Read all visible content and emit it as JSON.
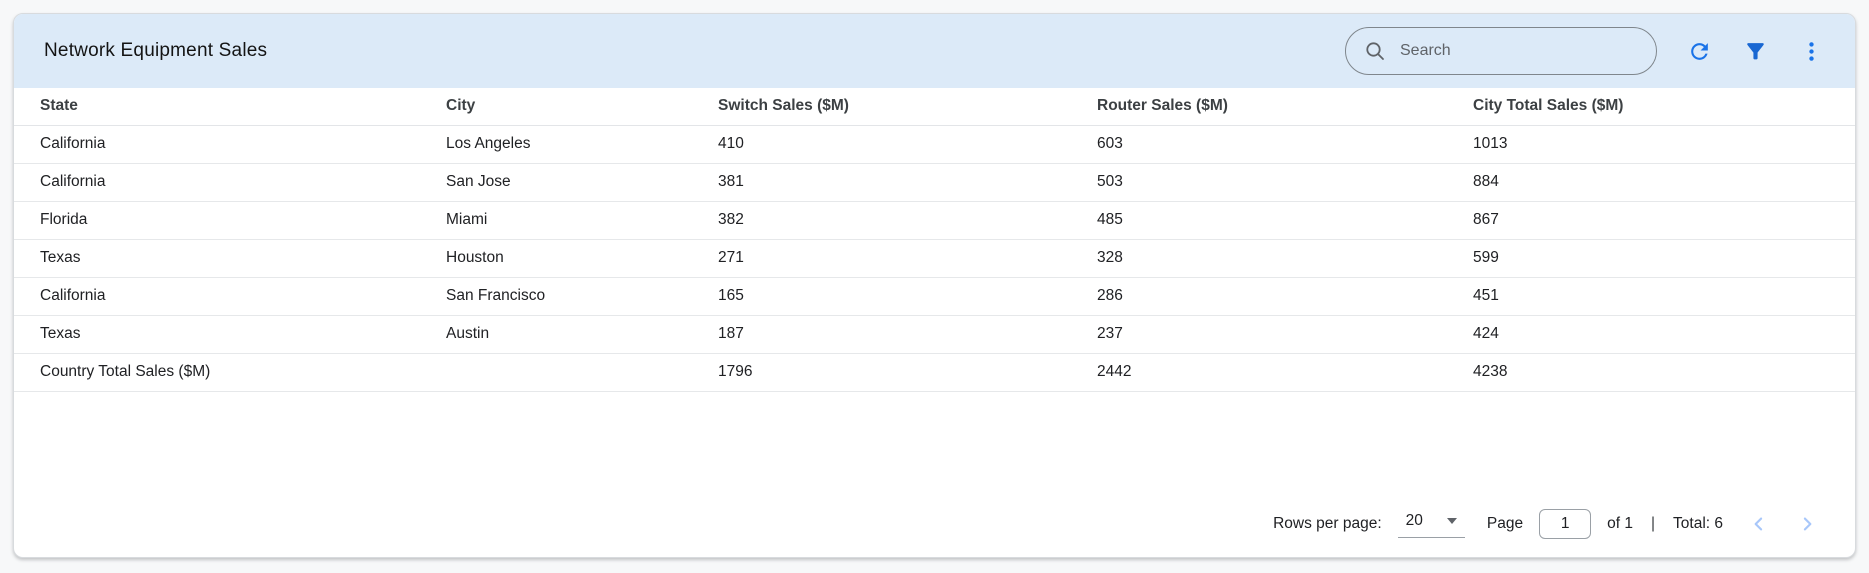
{
  "header": {
    "title": "Network Equipment Sales",
    "search_placeholder": "Search"
  },
  "icons": {
    "search": "magnifier",
    "refresh": "circular-arrow",
    "filter": "funnel",
    "menu": "kebab-vertical-dots",
    "prev": "chevron-left",
    "next": "chevron-right"
  },
  "table": {
    "columns": [
      "State",
      "City",
      "Switch Sales ($M)",
      "Router Sales ($M)",
      "City Total Sales ($M)"
    ],
    "rows": [
      [
        "California",
        "Los Angeles",
        "410",
        "603",
        "1013"
      ],
      [
        "California",
        "San Jose",
        "381",
        "503",
        "884"
      ],
      [
        "Florida",
        "Miami",
        "382",
        "485",
        "867"
      ],
      [
        "Texas",
        "Houston",
        "271",
        "328",
        "599"
      ],
      [
        "California",
        "San Francisco",
        "165",
        "286",
        "451"
      ],
      [
        "Texas",
        "Austin",
        "187",
        "237",
        "424"
      ]
    ],
    "total_row": [
      "Country Total Sales ($M)",
      "",
      "1796",
      "2442",
      "4238"
    ]
  },
  "pagination": {
    "rows_per_page_label": "Rows per page:",
    "rows_per_page_value": "20",
    "page_label": "Page",
    "page_value": "1",
    "of_label": "of 1",
    "separator": "|",
    "total_label": "Total: 6"
  },
  "colors": {
    "header_bg": "#dceaf8",
    "icon_blue": "#1a73e8",
    "filter_blue": "#1967d2",
    "chevron_disabled": "#a8c7fa",
    "card_bg": "#ffffff",
    "page_bg": "#f7f8f9"
  }
}
